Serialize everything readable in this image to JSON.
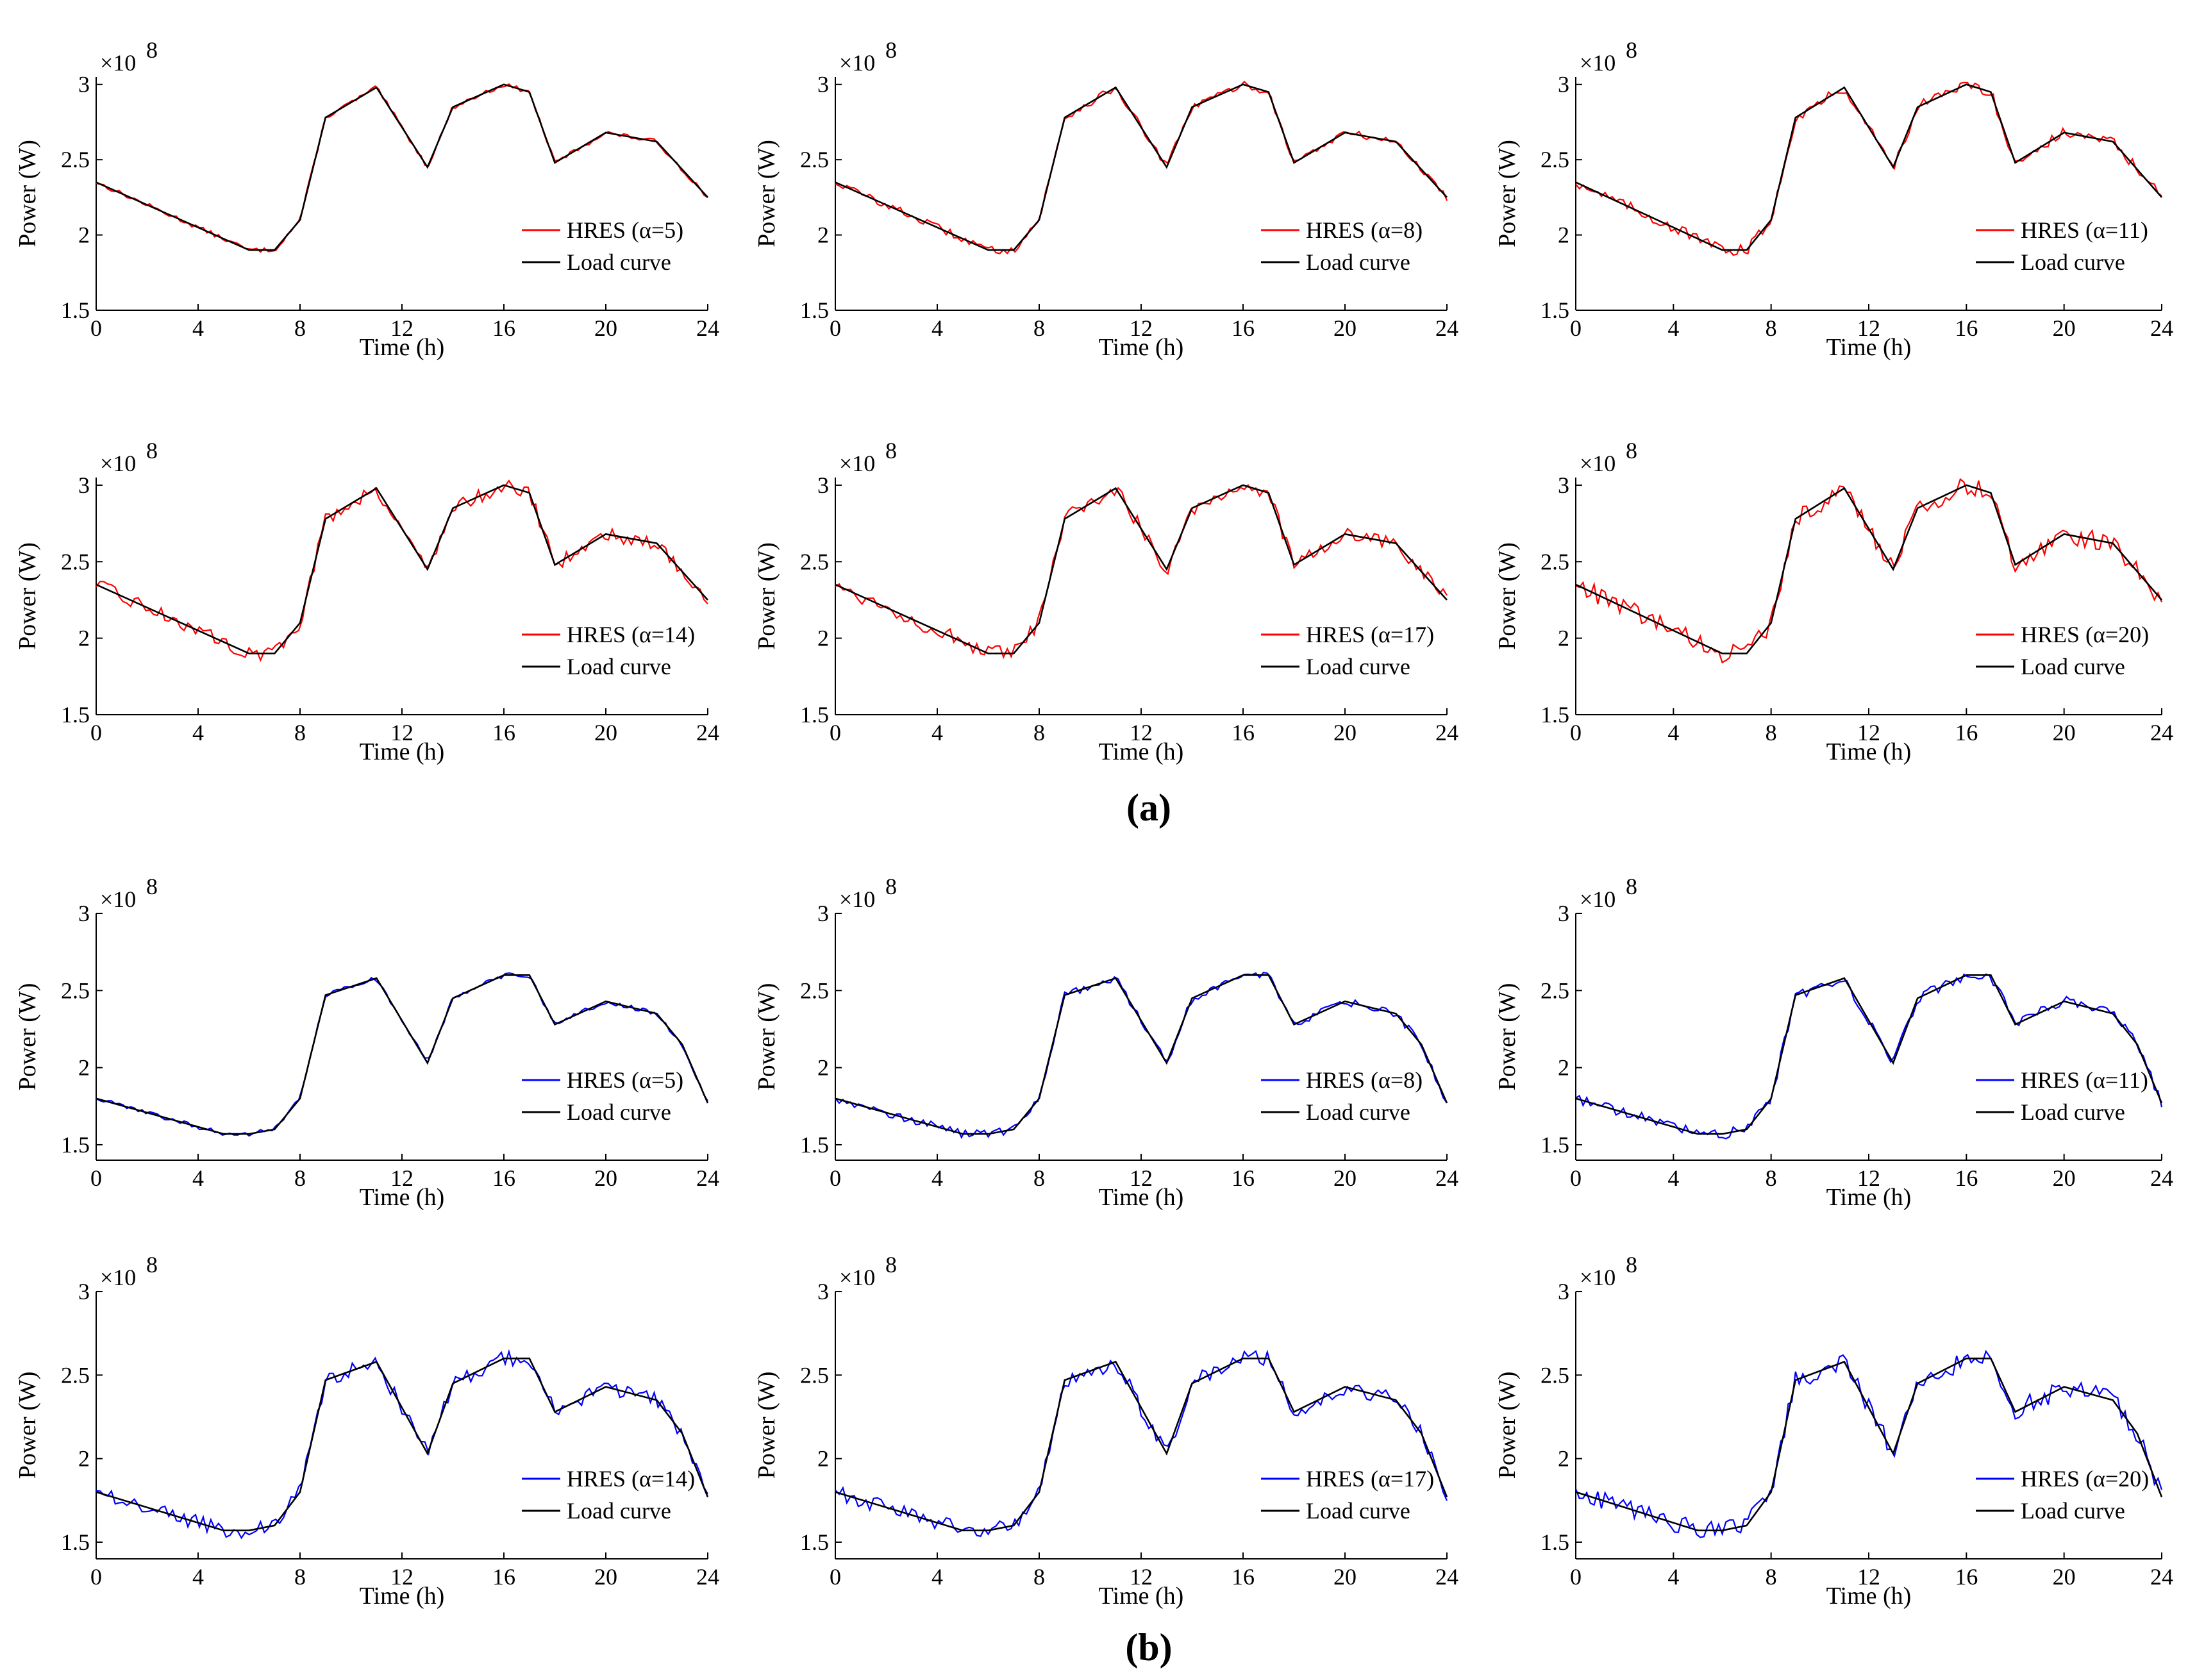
{
  "figure": {
    "panel_labels": [
      "(a)",
      "(b)"
    ],
    "colors": {
      "red": "#ff0000",
      "blue": "#0000ff",
      "load": "#000000"
    }
  },
  "chart_data": [
    {
      "type": "line",
      "group": "a",
      "color": "red",
      "xlabel": "Time (h)",
      "ylabel": "Power (W)",
      "exponent_label": "×10",
      "exponent": "8",
      "x_ticks": [
        "0",
        "4",
        "8",
        "12",
        "16",
        "20",
        "24"
      ],
      "y_ticks": [
        "1.5",
        "2",
        "2.5",
        "3"
      ],
      "xlim": [
        0,
        24
      ],
      "ylim": [
        1.5,
        3.05
      ],
      "series": [
        {
          "name": "HRES (α=5)",
          "noise": 0.015
        },
        {
          "name": "Load curve"
        }
      ],
      "load_curve": {
        "x": [
          0,
          6,
          7,
          8,
          9,
          11,
          13,
          14,
          16,
          17,
          18,
          20,
          22,
          24
        ],
        "y": [
          2.35,
          1.9,
          1.9,
          2.1,
          2.78,
          2.98,
          2.45,
          2.85,
          3.0,
          2.95,
          2.48,
          2.68,
          2.62,
          2.25
        ]
      }
    },
    {
      "type": "line",
      "group": "a",
      "color": "red",
      "xlabel": "Time (h)",
      "ylabel": "Power (W)",
      "exponent_label": "×10",
      "exponent": "8",
      "x_ticks": [
        "0",
        "4",
        "8",
        "12",
        "16",
        "20",
        "24"
      ],
      "y_ticks": [
        "1.5",
        "2",
        "2.5",
        "3"
      ],
      "xlim": [
        0,
        24
      ],
      "ylim": [
        1.5,
        3.05
      ],
      "series": [
        {
          "name": "HRES (α=8)",
          "noise": 0.025
        },
        {
          "name": "Load curve"
        }
      ],
      "load_curve": {
        "x": [
          0,
          6,
          7,
          8,
          9,
          11,
          13,
          14,
          16,
          17,
          18,
          20,
          22,
          24
        ],
        "y": [
          2.35,
          1.9,
          1.9,
          2.1,
          2.78,
          2.98,
          2.45,
          2.85,
          3.0,
          2.95,
          2.48,
          2.68,
          2.62,
          2.25
        ]
      }
    },
    {
      "type": "line",
      "group": "a",
      "color": "red",
      "xlabel": "Time (h)",
      "ylabel": "Power (W)",
      "exponent_label": "×10",
      "exponent": "8",
      "x_ticks": [
        "0",
        "4",
        "8",
        "12",
        "16",
        "20",
        "24"
      ],
      "y_ticks": [
        "1.5",
        "2",
        "2.5",
        "3"
      ],
      "xlim": [
        0,
        24
      ],
      "ylim": [
        1.5,
        3.05
      ],
      "series": [
        {
          "name": "HRES (α=11)",
          "noise": 0.035
        },
        {
          "name": "Load curve"
        }
      ],
      "load_curve": {
        "x": [
          0,
          6,
          7,
          8,
          9,
          11,
          13,
          14,
          16,
          17,
          18,
          20,
          22,
          24
        ],
        "y": [
          2.35,
          1.9,
          1.9,
          2.1,
          2.78,
          2.98,
          2.45,
          2.85,
          3.0,
          2.95,
          2.48,
          2.68,
          2.62,
          2.25
        ]
      }
    },
    {
      "type": "line",
      "group": "a",
      "color": "red",
      "xlabel": "Time (h)",
      "ylabel": "Power (W)",
      "exponent_label": "×10",
      "exponent": "8",
      "x_ticks": [
        "0",
        "4",
        "8",
        "12",
        "16",
        "20",
        "24"
      ],
      "y_ticks": [
        "1.5",
        "2",
        "2.5",
        "3"
      ],
      "xlim": [
        0,
        24
      ],
      "ylim": [
        1.5,
        3.05
      ],
      "series": [
        {
          "name": "HRES (α=14)",
          "noise": 0.045
        },
        {
          "name": "Load curve"
        }
      ],
      "load_curve": {
        "x": [
          0,
          6,
          7,
          8,
          9,
          11,
          13,
          14,
          16,
          17,
          18,
          20,
          22,
          24
        ],
        "y": [
          2.35,
          1.9,
          1.9,
          2.1,
          2.78,
          2.98,
          2.45,
          2.85,
          3.0,
          2.95,
          2.48,
          2.68,
          2.62,
          2.25
        ]
      }
    },
    {
      "type": "line",
      "group": "a",
      "color": "red",
      "xlabel": "Time (h)",
      "ylabel": "Power (W)",
      "exponent_label": "×10",
      "exponent": "8",
      "x_ticks": [
        "0",
        "4",
        "8",
        "12",
        "16",
        "20",
        "24"
      ],
      "y_ticks": [
        "1.5",
        "2",
        "2.5",
        "3"
      ],
      "xlim": [
        0,
        24
      ],
      "ylim": [
        1.5,
        3.05
      ],
      "series": [
        {
          "name": "HRES (α=17)",
          "noise": 0.05
        },
        {
          "name": "Load curve"
        }
      ],
      "load_curve": {
        "x": [
          0,
          6,
          7,
          8,
          9,
          11,
          13,
          14,
          16,
          17,
          18,
          20,
          22,
          24
        ],
        "y": [
          2.35,
          1.9,
          1.9,
          2.1,
          2.78,
          2.98,
          2.45,
          2.85,
          3.0,
          2.95,
          2.48,
          2.68,
          2.62,
          2.25
        ]
      }
    },
    {
      "type": "line",
      "group": "a",
      "color": "red",
      "xlabel": "Time (h)",
      "ylabel": "Power (W)",
      "exponent_label": "×10",
      "exponent": "8",
      "x_ticks": [
        "0",
        "4",
        "8",
        "12",
        "16",
        "20",
        "24"
      ],
      "y_ticks": [
        "1.5",
        "2",
        "2.5",
        "3"
      ],
      "xlim": [
        0,
        24
      ],
      "ylim": [
        1.5,
        3.05
      ],
      "series": [
        {
          "name": "HRES (α=20)",
          "noise": 0.06
        },
        {
          "name": "Load curve"
        }
      ],
      "load_curve": {
        "x": [
          0,
          6,
          7,
          8,
          9,
          11,
          13,
          14,
          16,
          17,
          18,
          20,
          22,
          24
        ],
        "y": [
          2.35,
          1.9,
          1.9,
          2.1,
          2.78,
          2.98,
          2.45,
          2.85,
          3.0,
          2.95,
          2.48,
          2.68,
          2.62,
          2.25
        ]
      }
    },
    {
      "type": "line",
      "group": "b",
      "color": "blue",
      "xlabel": "Time (h)",
      "ylabel": "Power (W)",
      "exponent_label": "×10",
      "exponent": "8",
      "x_ticks": [
        "0",
        "4",
        "8",
        "12",
        "16",
        "20",
        "24"
      ],
      "y_ticks": [
        "1.5",
        "2",
        "2.5",
        "3"
      ],
      "xlim": [
        0,
        24
      ],
      "ylim": [
        1.4,
        3.0
      ],
      "series": [
        {
          "name": "HRES (α=5)",
          "noise": 0.015
        },
        {
          "name": "Load curve"
        }
      ],
      "load_curve": {
        "x": [
          0,
          5,
          6,
          7,
          8,
          9,
          11,
          13,
          14,
          16,
          17,
          18,
          20,
          22,
          23,
          24
        ],
        "y": [
          1.8,
          1.57,
          1.57,
          1.6,
          1.8,
          2.47,
          2.58,
          2.03,
          2.45,
          2.6,
          2.6,
          2.28,
          2.43,
          2.35,
          2.15,
          1.77
        ]
      }
    },
    {
      "type": "line",
      "group": "b",
      "color": "blue",
      "xlabel": "Time (h)",
      "ylabel": "Power (W)",
      "exponent_label": "×10",
      "exponent": "8",
      "x_ticks": [
        "0",
        "4",
        "8",
        "12",
        "16",
        "20",
        "24"
      ],
      "y_ticks": [
        "1.5",
        "2",
        "2.5",
        "3"
      ],
      "xlim": [
        0,
        24
      ],
      "ylim": [
        1.4,
        3.0
      ],
      "series": [
        {
          "name": "HRES (α=8)",
          "noise": 0.025
        },
        {
          "name": "Load curve"
        }
      ],
      "load_curve": {
        "x": [
          0,
          5,
          6,
          7,
          8,
          9,
          11,
          13,
          14,
          16,
          17,
          18,
          20,
          22,
          23,
          24
        ],
        "y": [
          1.8,
          1.57,
          1.57,
          1.6,
          1.8,
          2.47,
          2.58,
          2.03,
          2.45,
          2.6,
          2.6,
          2.28,
          2.43,
          2.35,
          2.15,
          1.77
        ]
      }
    },
    {
      "type": "line",
      "group": "b",
      "color": "blue",
      "xlabel": "Time (h)",
      "ylabel": "Power (W)",
      "exponent_label": "×10",
      "exponent": "8",
      "x_ticks": [
        "0",
        "4",
        "8",
        "12",
        "16",
        "20",
        "24"
      ],
      "y_ticks": [
        "1.5",
        "2",
        "2.5",
        "3"
      ],
      "xlim": [
        0,
        24
      ],
      "ylim": [
        1.4,
        3.0
      ],
      "series": [
        {
          "name": "HRES (α=11)",
          "noise": 0.035
        },
        {
          "name": "Load curve"
        }
      ],
      "load_curve": {
        "x": [
          0,
          5,
          6,
          7,
          8,
          9,
          11,
          13,
          14,
          16,
          17,
          18,
          20,
          22,
          23,
          24
        ],
        "y": [
          1.8,
          1.57,
          1.57,
          1.6,
          1.8,
          2.47,
          2.58,
          2.03,
          2.45,
          2.6,
          2.6,
          2.28,
          2.43,
          2.35,
          2.15,
          1.77
        ]
      }
    },
    {
      "type": "line",
      "group": "b",
      "color": "blue",
      "xlabel": "Time (h)",
      "ylabel": "Power (W)",
      "exponent_label": "×10",
      "exponent": "8",
      "x_ticks": [
        "0",
        "4",
        "8",
        "12",
        "16",
        "20",
        "24"
      ],
      "y_ticks": [
        "1.5",
        "2",
        "2.5",
        "3"
      ],
      "xlim": [
        0,
        24
      ],
      "ylim": [
        1.4,
        3.0
      ],
      "series": [
        {
          "name": "HRES (α=14)",
          "noise": 0.045
        },
        {
          "name": "Load curve"
        }
      ],
      "load_curve": {
        "x": [
          0,
          5,
          6,
          7,
          8,
          9,
          11,
          13,
          14,
          16,
          17,
          18,
          20,
          22,
          23,
          24
        ],
        "y": [
          1.8,
          1.57,
          1.57,
          1.6,
          1.8,
          2.47,
          2.58,
          2.03,
          2.45,
          2.6,
          2.6,
          2.28,
          2.43,
          2.35,
          2.15,
          1.77
        ]
      }
    },
    {
      "type": "line",
      "group": "b",
      "color": "blue",
      "xlabel": "Time (h)",
      "ylabel": "Power (W)",
      "exponent_label": "×10",
      "exponent": "8",
      "x_ticks": [
        "0",
        "4",
        "8",
        "12",
        "16",
        "20",
        "24"
      ],
      "y_ticks": [
        "1.5",
        "2",
        "2.5",
        "3"
      ],
      "xlim": [
        0,
        24
      ],
      "ylim": [
        1.4,
        3.0
      ],
      "series": [
        {
          "name": "HRES (α=17)",
          "noise": 0.05
        },
        {
          "name": "Load curve"
        }
      ],
      "load_curve": {
        "x": [
          0,
          5,
          6,
          7,
          8,
          9,
          11,
          13,
          14,
          16,
          17,
          18,
          20,
          22,
          23,
          24
        ],
        "y": [
          1.8,
          1.57,
          1.57,
          1.6,
          1.8,
          2.47,
          2.58,
          2.03,
          2.45,
          2.6,
          2.6,
          2.28,
          2.43,
          2.35,
          2.15,
          1.77
        ]
      }
    },
    {
      "type": "line",
      "group": "b",
      "color": "blue",
      "xlabel": "Time (h)",
      "ylabel": "Power (W)",
      "exponent_label": "×10",
      "exponent": "8",
      "x_ticks": [
        "0",
        "4",
        "8",
        "12",
        "16",
        "20",
        "24"
      ],
      "y_ticks": [
        "1.5",
        "2",
        "2.5",
        "3"
      ],
      "xlim": [
        0,
        24
      ],
      "ylim": [
        1.4,
        3.0
      ],
      "series": [
        {
          "name": "HRES (α=20)",
          "noise": 0.06
        },
        {
          "name": "Load curve"
        }
      ],
      "load_curve": {
        "x": [
          0,
          5,
          6,
          7,
          8,
          9,
          11,
          13,
          14,
          16,
          17,
          18,
          20,
          22,
          23,
          24
        ],
        "y": [
          1.8,
          1.57,
          1.57,
          1.6,
          1.8,
          2.47,
          2.58,
          2.03,
          2.45,
          2.6,
          2.6,
          2.28,
          2.43,
          2.35,
          2.15,
          1.77
        ]
      }
    }
  ]
}
